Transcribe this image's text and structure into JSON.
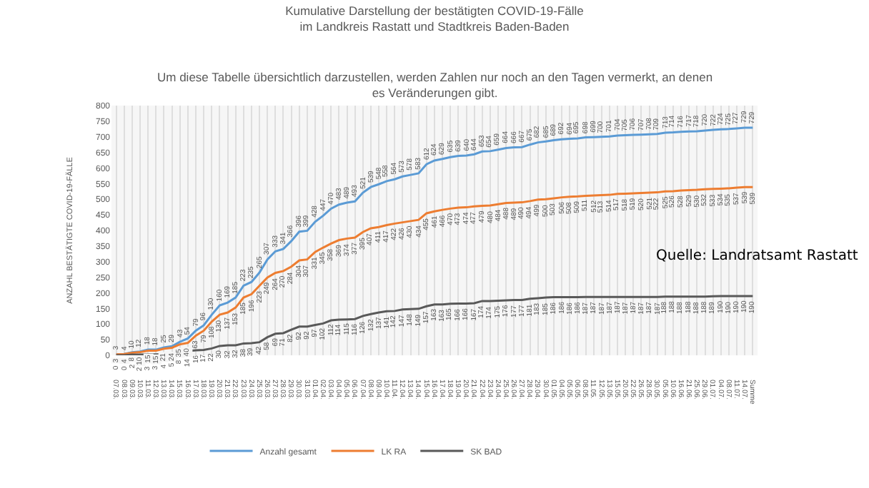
{
  "chart_data": {
    "type": "line",
    "title": "Kumulative Darstellung der bestätigten COVID-19-Fälle\nim Landkreis Rastatt und Stadtkreis Baden-Baden",
    "subtitle": "Um diese Tabelle übersichtlich darzustellen, werden Zahlen nur noch an den Tagen vermerkt, an denen\nes Veränderungen gibt.",
    "ylabel": "ANZAHL BESTÄTIGTE COVID-19-FÄLLE",
    "annotations": [
      "Quelle: Landratsamt Rastatt"
    ],
    "categories": [
      "07.03.",
      "08.03.",
      "09.03.",
      "10.03.",
      "11.03.",
      "12.03.",
      "13.03.",
      "14.03.",
      "15.03.",
      "16.03.",
      "17.03.",
      "18.03.",
      "19.03.",
      "20.03.",
      "21.03.",
      "22.03.",
      "23.03.",
      "24.03.",
      "25.03.",
      "26.03.",
      "27.03.",
      "28.03.",
      "29.03.",
      "30.03.",
      "31.03.",
      "01.04.",
      "02.04.",
      "03.04.",
      "04.04.",
      "05.04.",
      "06.04.",
      "07.04.",
      "08.04.",
      "09.04.",
      "10.04.",
      "11.04.",
      "12.04.",
      "13.04.",
      "14.04.",
      "15.04.",
      "16.04.",
      "17.04.",
      "18.04.",
      "19.04.",
      "20.04.",
      "21.04.",
      "22.04.",
      "23.04.",
      "24.04.",
      "25.04.",
      "26.04.",
      "27.04.",
      "28.04.",
      "29.04.",
      "30.04.",
      "01.05.",
      "04.05.",
      "05.05.",
      "06.05.",
      "08.05.",
      "11.05.",
      "12.05.",
      "13.05.",
      "15.05.",
      "20.05.",
      "22.05.",
      "26.05.",
      "28.05.",
      "30.05.",
      "05.06.",
      "10.06.",
      "16.06.",
      "21.06.",
      "25.06.",
      "29.06.",
      "01.07.",
      "04.07.",
      "08.07.",
      "11.07.",
      "14.07.",
      "Summe"
    ],
    "series": [
      {
        "name": "Anzahl gesamt",
        "color": "#5b9bd5",
        "values": [
          3,
          4,
          10,
          12,
          18,
          18,
          25,
          29,
          43,
          54,
          79,
          96,
          130,
          160,
          169,
          185,
          223,
          235,
          265,
          307,
          333,
          341,
          366,
          396,
          399,
          428,
          447,
          470,
          483,
          489,
          493,
          521,
          539,
          548,
          558,
          564,
          573,
          578,
          583,
          612,
          624,
          629,
          635,
          639,
          640,
          644,
          653,
          654,
          659,
          664,
          666,
          667,
          675,
          682,
          685,
          689,
          692,
          694,
          695,
          698,
          699,
          700,
          701,
          704,
          705,
          706,
          707,
          708,
          709,
          713,
          714,
          716,
          717,
          718,
          720,
          722,
          724,
          725,
          727,
          729,
          729
        ]
      },
      {
        "name": "LK RA",
        "color": "#ed7d31",
        "values": [
          3,
          4,
          8,
          10,
          15,
          15,
          21,
          24,
          35,
          40,
          63,
          79,
          108,
          130,
          137,
          153,
          185,
          196,
          223,
          249,
          264,
          270,
          284,
          304,
          307,
          331,
          345,
          358,
          369,
          374,
          377,
          395,
          407,
          411,
          417,
          422,
          426,
          430,
          434,
          455,
          461,
          466,
          470,
          473,
          474,
          477,
          479,
          480,
          484,
          488,
          489,
          490,
          494,
          499,
          500,
          503,
          506,
          508,
          509,
          511,
          512,
          513,
          514,
          517,
          518,
          519,
          520,
          521,
          522,
          525,
          526,
          528,
          529,
          530,
          532,
          533,
          534,
          535,
          537,
          539,
          539
        ]
      },
      {
        "name": "SK BAD",
        "color": "#595959",
        "values": [
          0,
          0,
          2,
          2,
          3,
          3,
          4,
          5,
          8,
          14,
          16,
          17,
          22,
          30,
          32,
          32,
          38,
          39,
          42,
          58,
          69,
          71,
          82,
          92,
          92,
          97,
          102,
          112,
          114,
          115,
          116,
          126,
          132,
          137,
          141,
          142,
          147,
          148,
          149,
          157,
          163,
          163,
          165,
          166,
          166,
          167,
          174,
          174,
          175,
          176,
          177,
          177,
          181,
          183,
          185,
          186,
          186,
          186,
          186,
          187,
          187,
          187,
          187,
          187,
          187,
          187,
          187,
          187,
          187,
          188,
          188,
          188,
          188,
          188,
          188,
          189,
          190,
          190,
          190,
          190,
          190
        ]
      }
    ],
    "ylim": [
      0,
      800
    ],
    "yticks": [
      0,
      50,
      100,
      150,
      200,
      250,
      300,
      350,
      400,
      450,
      500,
      550,
      600,
      650,
      700,
      750,
      800
    ],
    "grid": "x",
    "legend": "bottom",
    "data_labels": true
  }
}
